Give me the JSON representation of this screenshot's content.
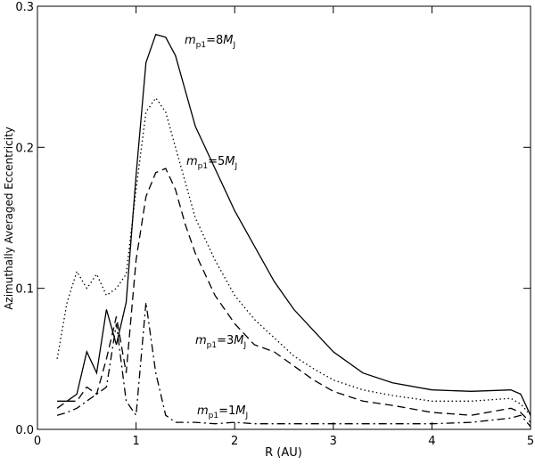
{
  "chart_data": {
    "type": "line",
    "x_label": "R (AU)",
    "y_label": "Azimuthally Averaged Eccentricity",
    "xlim": [
      0,
      5
    ],
    "xticks": [
      0,
      1,
      2,
      3,
      4,
      5
    ],
    "ylim": [
      0,
      0.3
    ],
    "yticks": [
      {
        "value": 0,
        "label": "0.0"
      },
      0.1,
      0.2,
      0.3
    ],
    "x": [
      0.2,
      0.3,
      0.4,
      0.5,
      0.6,
      0.7,
      0.8,
      0.9,
      1.0,
      1.1,
      1.2,
      1.3,
      1.4,
      1.5,
      1.6,
      1.8,
      2.0,
      2.2,
      2.4,
      2.6,
      2.8,
      3.0,
      3.3,
      3.6,
      4.0,
      4.4,
      4.8,
      4.9,
      5.0
    ],
    "series": [
      {
        "color": "#000000",
        "dash": "solid",
        "values": [
          0.02,
          0.02,
          0.025,
          0.055,
          0.04,
          0.085,
          0.06,
          0.09,
          0.18,
          0.26,
          0.28,
          0.278,
          0.265,
          0.24,
          0.215,
          0.185,
          0.155,
          0.13,
          0.105,
          0.085,
          0.07,
          0.055,
          0.04,
          0.033,
          0.028,
          0.027,
          0.028,
          0.025,
          0.01
        ]
      },
      {
        "color": "#000000",
        "dash": "dotted",
        "values": [
          0.05,
          0.09,
          0.112,
          0.1,
          0.11,
          0.095,
          0.1,
          0.11,
          0.17,
          0.225,
          0.235,
          0.225,
          0.2,
          0.175,
          0.15,
          0.12,
          0.095,
          0.078,
          0.065,
          0.052,
          0.043,
          0.035,
          0.028,
          0.024,
          0.02,
          0.02,
          0.022,
          0.018,
          0.01
        ]
      },
      {
        "color": "#000000",
        "dash": "dashed",
        "values": [
          0.015,
          0.02,
          0.02,
          0.03,
          0.025,
          0.05,
          0.08,
          0.04,
          0.12,
          0.165,
          0.182,
          0.185,
          0.17,
          0.145,
          0.125,
          0.095,
          0.075,
          0.06,
          0.055,
          0.045,
          0.035,
          0.027,
          0.02,
          0.017,
          0.012,
          0.01,
          0.015,
          0.012,
          0.005
        ]
      },
      {
        "color": "#000000",
        "dash": "dashdot",
        "values": [
          0.01,
          0.012,
          0.015,
          0.02,
          0.025,
          0.03,
          0.075,
          0.02,
          0.01,
          0.09,
          0.04,
          0.01,
          0.005,
          0.005,
          0.005,
          0.004,
          0.005,
          0.004,
          0.004,
          0.004,
          0.004,
          0.004,
          0.004,
          0.004,
          0.004,
          0.005,
          0.008,
          0.01,
          0.002
        ]
      }
    ],
    "annotations": [
      [
        "m",
        "p1",
        "=8",
        "M",
        "J"
      ],
      [
        "m",
        "p1",
        "=5",
        "M",
        "J"
      ],
      [
        "m",
        "p1",
        "=3",
        "M",
        "J"
      ],
      [
        "m",
        "p1",
        "=1",
        "M",
        "J"
      ]
    ]
  }
}
